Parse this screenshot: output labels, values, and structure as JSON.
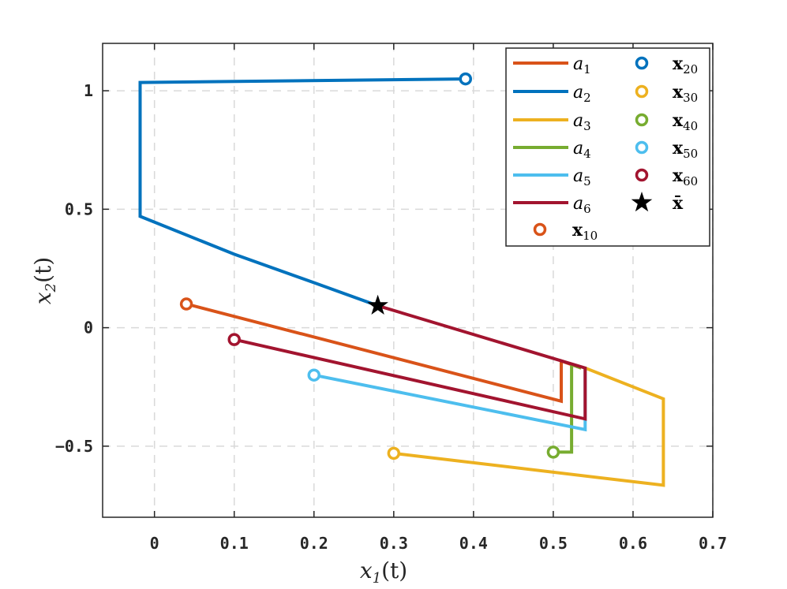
{
  "chart_data": {
    "type": "line",
    "xlabel": {
      "var": "x",
      "sub": "1",
      "suffix": "(t)"
    },
    "ylabel": {
      "var": "x",
      "sub": "2",
      "suffix": "(t)"
    },
    "xlim": [
      -0.065,
      0.7
    ],
    "ylim": [
      -0.8,
      1.2
    ],
    "xticks": [
      0,
      0.1,
      0.2,
      0.3,
      0.4,
      0.5,
      0.6,
      0.7
    ],
    "xtick_labels": [
      "0",
      "0.1",
      "0.2",
      "0.3",
      "0.4",
      "0.5",
      "0.6",
      "0.7"
    ],
    "yticks": [
      -0.5,
      0,
      0.5,
      1
    ],
    "ytick_labels": [
      "−0.5",
      "0",
      "0.5",
      "1"
    ],
    "grid": true,
    "legend_position": "top-right",
    "series": [
      {
        "name": "a",
        "sub": "1",
        "color": "#D95319",
        "points": [
          [
            0.04,
            0.1
          ],
          [
            0.51,
            -0.31
          ],
          [
            0.51,
            -0.14
          ],
          [
            0.535,
            -0.17
          ]
        ]
      },
      {
        "name": "a",
        "sub": "2",
        "color": "#0072BD",
        "points": [
          [
            0.39,
            1.05
          ],
          [
            -0.018,
            1.035
          ],
          [
            -0.018,
            0.47
          ],
          [
            0.1,
            0.31
          ],
          [
            0.2,
            0.19
          ],
          [
            0.28,
            0.093
          ]
        ]
      },
      {
        "name": "a",
        "sub": "3",
        "color": "#EDB120",
        "points": [
          [
            0.3,
            -0.53
          ],
          [
            0.638,
            -0.665
          ],
          [
            0.638,
            -0.3
          ],
          [
            0.54,
            -0.17
          ]
        ]
      },
      {
        "name": "a",
        "sub": "4",
        "color": "#77AC30",
        "points": [
          [
            0.5,
            -0.525
          ],
          [
            0.523,
            -0.525
          ],
          [
            0.523,
            -0.155
          ],
          [
            0.535,
            -0.17
          ]
        ]
      },
      {
        "name": "a",
        "sub": "5",
        "color": "#4DBEEE",
        "points": [
          [
            0.2,
            -0.2
          ],
          [
            0.54,
            -0.43
          ],
          [
            0.54,
            -0.17
          ]
        ]
      },
      {
        "name": "a",
        "sub": "6",
        "color": "#A2142F",
        "points": [
          [
            0.1,
            -0.05
          ],
          [
            0.54,
            -0.385
          ],
          [
            0.54,
            -0.17
          ],
          [
            0.28,
            0.093
          ]
        ]
      }
    ],
    "markers": [
      {
        "name": "x",
        "sub": "10",
        "color": "#D95319",
        "x": 0.04,
        "y": 0.1
      },
      {
        "name": "x",
        "sub": "20",
        "color": "#0072BD",
        "x": 0.39,
        "y": 1.05
      },
      {
        "name": "x",
        "sub": "30",
        "color": "#EDB120",
        "x": 0.3,
        "y": -0.53
      },
      {
        "name": "x",
        "sub": "40",
        "color": "#77AC30",
        "x": 0.5,
        "y": -0.525
      },
      {
        "name": "x",
        "sub": "50",
        "color": "#4DBEEE",
        "x": 0.2,
        "y": -0.2
      },
      {
        "name": "x",
        "sub": "60",
        "color": "#A2142F",
        "x": 0.1,
        "y": -0.05
      }
    ],
    "equilibrium": {
      "label": "x̄",
      "color": "#000000",
      "x": 0.28,
      "y": 0.093
    }
  }
}
